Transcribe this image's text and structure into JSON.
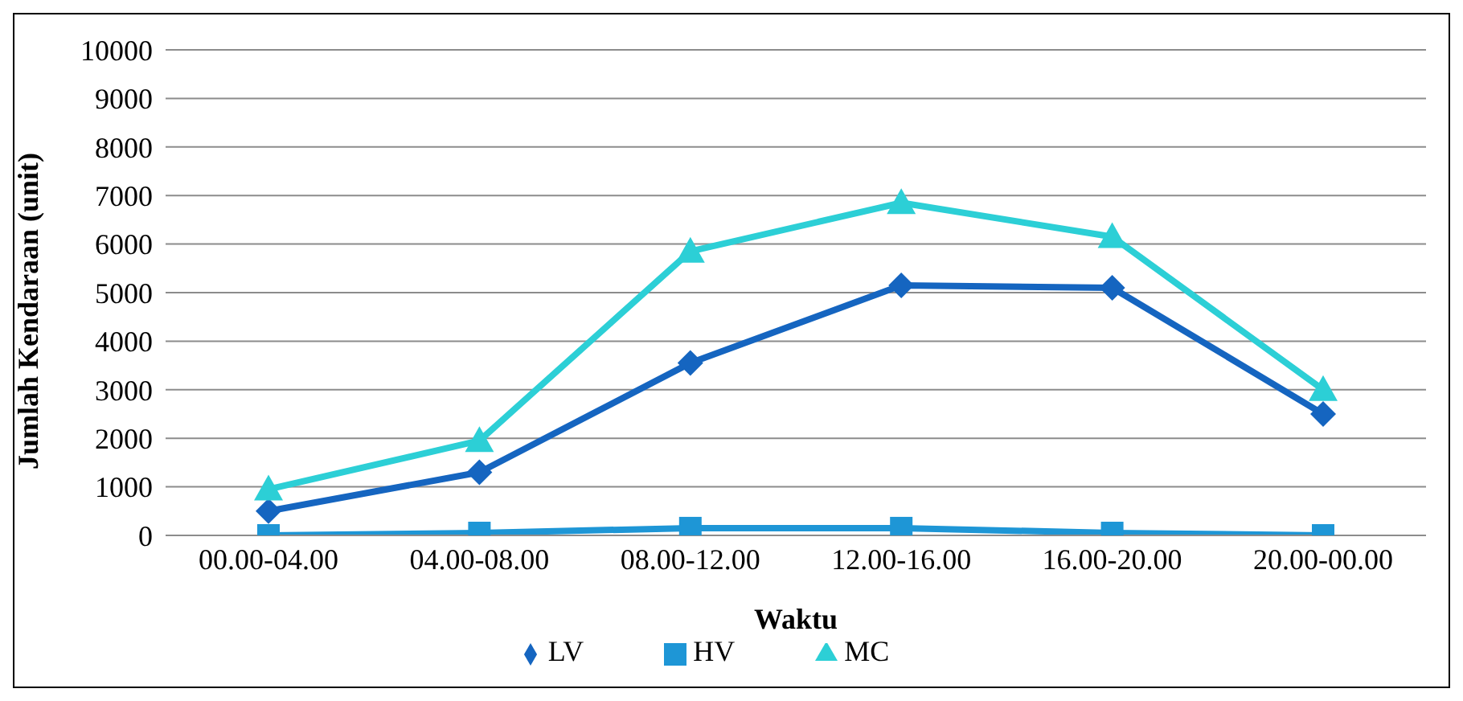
{
  "chart_data": {
    "type": "line",
    "xlabel": "Waktu",
    "ylabel": "Jumlah Kendaraan (unit)",
    "categories": [
      "00.00-04.00",
      "04.00-08.00",
      "08.00-12.00",
      "12.00-16.00",
      "16.00-20.00",
      "20.00-00.00"
    ],
    "series": [
      {
        "name": "LV",
        "color": "#1565c0",
        "marker": "diamond",
        "values": [
          500,
          1300,
          3550,
          5150,
          5100,
          2500
        ]
      },
      {
        "name": "HV",
        "color": "#1e96d6",
        "marker": "square",
        "values": [
          0,
          50,
          150,
          150,
          50,
          0
        ]
      },
      {
        "name": "MC",
        "color": "#2ccfd6",
        "marker": "triangle",
        "values": [
          950,
          1950,
          5850,
          6850,
          6150,
          3000
        ]
      }
    ],
    "ylim": [
      0,
      10000
    ],
    "yticks": [
      0,
      1000,
      2000,
      3000,
      4000,
      5000,
      6000,
      7000,
      8000,
      9000,
      10000
    ],
    "grid": "y",
    "legend": "bottom",
    "line_style": "solid"
  }
}
